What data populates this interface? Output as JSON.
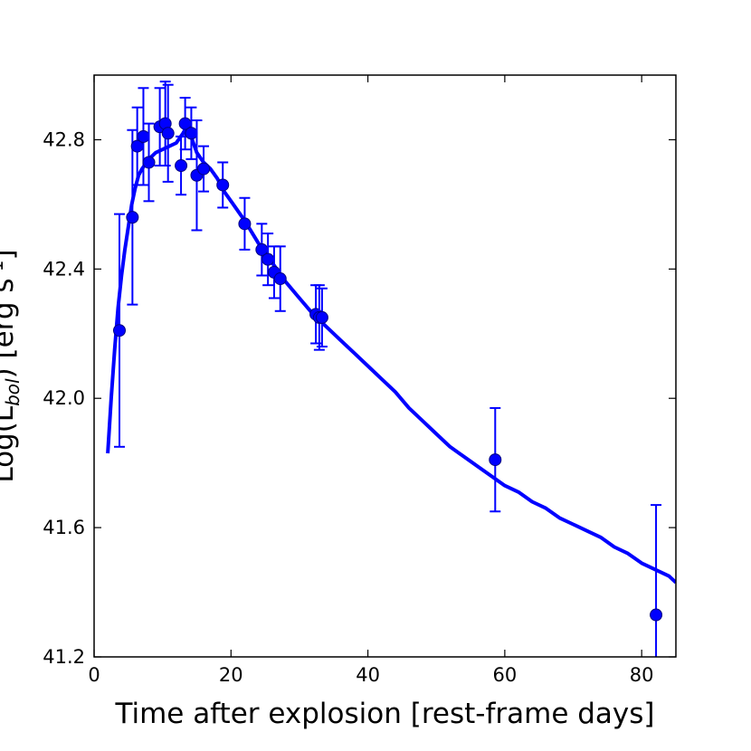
{
  "chart_data": {
    "type": "scatter",
    "xlabel": "Time after explosion [rest-frame days]",
    "ylabel": "Log(L_bol) [erg s^-1]",
    "ylabel_parts": {
      "pre": "Log(L",
      "sub": "bol",
      "post": ") [erg s",
      "sup": "-1",
      "end": "]"
    },
    "xlim": [
      0,
      85
    ],
    "ylim": [
      41.2,
      43.0
    ],
    "xticks": [
      0,
      20,
      40,
      60,
      80
    ],
    "yticks": [
      41.2,
      41.6,
      42.0,
      42.4,
      42.8
    ],
    "ytick_labels": [
      "41.2",
      "41.6",
      "42.0",
      "42.4",
      "42.8"
    ],
    "grid": false,
    "colors": {
      "series": "#0000ff",
      "marker_fill": "#0000ff",
      "marker_edge": "#000080",
      "axes": "#000000"
    },
    "series": [
      {
        "kind": "points_with_errorbars",
        "points": [
          {
            "x": 3.7,
            "y": 42.21,
            "err": 0.36
          },
          {
            "x": 5.6,
            "y": 42.56,
            "err": 0.27
          },
          {
            "x": 6.3,
            "y": 42.78,
            "err": 0.12
          },
          {
            "x": 7.2,
            "y": 42.81,
            "err": 0.15
          },
          {
            "x": 8.0,
            "y": 42.73,
            "err": 0.12
          },
          {
            "x": 9.6,
            "y": 42.84,
            "err": 0.12
          },
          {
            "x": 10.4,
            "y": 42.85,
            "err": 0.13
          },
          {
            "x": 10.8,
            "y": 42.82,
            "err": 0.15
          },
          {
            "x": 12.7,
            "y": 42.72,
            "err": 0.09
          },
          {
            "x": 13.3,
            "y": 42.85,
            "err": 0.08
          },
          {
            "x": 14.2,
            "y": 42.82,
            "err": 0.08
          },
          {
            "x": 15.0,
            "y": 42.69,
            "err": 0.17
          },
          {
            "x": 16.0,
            "y": 42.71,
            "err": 0.07
          },
          {
            "x": 18.8,
            "y": 42.66,
            "err": 0.07
          },
          {
            "x": 22.0,
            "y": 42.54,
            "err": 0.08
          },
          {
            "x": 24.5,
            "y": 42.46,
            "err": 0.08
          },
          {
            "x": 25.4,
            "y": 42.43,
            "err": 0.08
          },
          {
            "x": 26.3,
            "y": 42.39,
            "err": 0.08
          },
          {
            "x": 27.2,
            "y": 42.37,
            "err": 0.1
          },
          {
            "x": 32.4,
            "y": 42.26,
            "err": 0.09
          },
          {
            "x": 32.9,
            "y": 42.25,
            "err": 0.1
          },
          {
            "x": 33.3,
            "y": 42.25,
            "err": 0.09
          },
          {
            "x": 58.6,
            "y": 41.81,
            "err": 0.16
          },
          {
            "x": 82.1,
            "y": 41.33,
            "err": 0.34
          }
        ]
      },
      {
        "kind": "model_line",
        "x": [
          2.0,
          2.5,
          3.0,
          3.5,
          4.0,
          4.5,
          5.0,
          5.5,
          6.0,
          6.5,
          7.0,
          8.0,
          9.0,
          10.0,
          11.0,
          12.0,
          13.0,
          13.5,
          14.0,
          15.0,
          16.0,
          17.0,
          18.0,
          19.0,
          20.0,
          22.0,
          24.0,
          26.0,
          28.0,
          30.0,
          32.0,
          34.0,
          36.0,
          38.0,
          40.0,
          42.0,
          44.0,
          46.0,
          48.0,
          50.0,
          52.0,
          54.0,
          56.0,
          58.0,
          60.0,
          62.0,
          64.0,
          66.0,
          68.0,
          70.0,
          72.0,
          74.0,
          76.0,
          78.0,
          80.0,
          82.0,
          84.0,
          85.0
        ],
        "y": [
          41.83,
          42.0,
          42.15,
          42.28,
          42.38,
          42.46,
          42.53,
          42.6,
          42.65,
          42.69,
          42.71,
          42.74,
          42.76,
          42.77,
          42.78,
          42.79,
          42.82,
          42.84,
          42.82,
          42.76,
          42.73,
          42.71,
          42.68,
          42.64,
          42.61,
          42.55,
          42.48,
          42.42,
          42.36,
          42.31,
          42.26,
          42.22,
          42.18,
          42.14,
          42.1,
          42.06,
          42.02,
          41.97,
          41.93,
          41.89,
          41.85,
          41.82,
          41.79,
          41.76,
          41.73,
          41.71,
          41.68,
          41.66,
          41.63,
          41.61,
          41.59,
          41.57,
          41.54,
          41.52,
          41.49,
          41.47,
          41.45,
          41.43
        ]
      }
    ]
  }
}
